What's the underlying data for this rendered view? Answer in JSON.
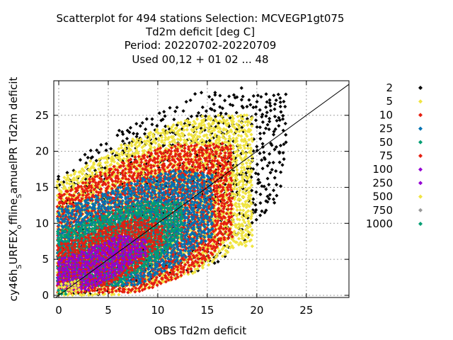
{
  "chart_data": {
    "type": "scatter",
    "title_lines": [
      "Scatterplot for  494 stations Selection: MCVEGP1gt075",
      "Td2m deficit [deg C]",
      "Period: 20220702-20220709",
      "Used  00,12  + 01 02 ... 48"
    ],
    "xlabel": "OBS Td2m deficit",
    "ylabel_parts": [
      "cy46h",
      "S",
      "URFEX",
      "o",
      "ffline",
      "S",
      "amuelPR Td2m deficit"
    ],
    "xlim": [
      -0.5,
      29.3
    ],
    "ylim": [
      -0.3,
      29.8
    ],
    "x_ticks": [
      0,
      5,
      10,
      15,
      20,
      25
    ],
    "y_ticks": [
      0,
      5,
      10,
      15,
      20,
      25
    ],
    "grid": true,
    "diagonal_line": true,
    "legend_position": "right",
    "legend": [
      {
        "label": "2",
        "color": "#000000"
      },
      {
        "label": "5",
        "color": "#f0e442"
      },
      {
        "label": "10",
        "color": "#e51e10"
      },
      {
        "label": "25",
        "color": "#0072b2"
      },
      {
        "label": "50",
        "color": "#009e73"
      },
      {
        "label": "75",
        "color": "#e51e10"
      },
      {
        "label": "100",
        "color": "#9400d3"
      },
      {
        "label": "250",
        "color": "#9400d3"
      },
      {
        "label": "500",
        "color": "#f0e442"
      },
      {
        "label": "750",
        "color": "#999999"
      },
      {
        "label": "1000",
        "color": "#009e73"
      }
    ],
    "density_bands": [
      {
        "count_class": "2",
        "color": "#000000",
        "upper": [
          [
            0,
            17
          ],
          [
            2,
            19
          ],
          [
            4,
            21
          ],
          [
            6,
            23
          ],
          [
            8,
            24.5
          ],
          [
            10,
            25.5
          ],
          [
            12,
            26.5
          ],
          [
            14,
            28
          ],
          [
            16,
            28.5
          ]
        ],
        "lower_gap": [
          [
            4,
            0.2
          ],
          [
            8,
            1.5
          ],
          [
            12,
            3
          ],
          [
            16,
            4.5
          ],
          [
            18,
            7
          ],
          [
            20,
            10
          ],
          [
            22,
            13
          ],
          [
            23,
            19
          ]
        ],
        "x_max": 23,
        "spread": 1.0
      },
      {
        "count_class": "5",
        "color": "#f0e442",
        "upper": [
          [
            0,
            16
          ],
          [
            4,
            19
          ],
          [
            8,
            22
          ],
          [
            12,
            24
          ],
          [
            15,
            25
          ]
        ],
        "lower_gap": [
          [
            6,
            0.2
          ],
          [
            10,
            1.5
          ],
          [
            14,
            3.5
          ],
          [
            18,
            7
          ]
        ],
        "x_max": 19.5,
        "spread": 0.9
      },
      {
        "count_class": "10",
        "color": "#e51e10",
        "upper": [
          [
            0,
            14
          ],
          [
            4,
            17
          ],
          [
            8,
            19.5
          ],
          [
            12,
            21
          ],
          [
            14,
            21
          ]
        ],
        "lower_gap": [
          [
            8,
            0.5
          ],
          [
            12,
            2.5
          ],
          [
            15,
            5
          ],
          [
            17,
            8
          ]
        ],
        "x_max": 17.5,
        "spread": 0.8
      },
      {
        "count_class": "25",
        "color": "#0072b2",
        "upper": [
          [
            0,
            12
          ],
          [
            4,
            14
          ],
          [
            8,
            16
          ],
          [
            12,
            17.5
          ],
          [
            14,
            17
          ]
        ],
        "lower_gap": [
          [
            8,
            1.5
          ],
          [
            12,
            4.5
          ],
          [
            15,
            8
          ]
        ],
        "x_max": 15.5,
        "spread": 0.7
      },
      {
        "count_class": "50",
        "color": "#009e73",
        "upper": [
          [
            0,
            9
          ],
          [
            4,
            11
          ],
          [
            8,
            13
          ],
          [
            11,
            13
          ]
        ],
        "lower_gap": [
          [
            6,
            1.5
          ],
          [
            10,
            5
          ],
          [
            12,
            8
          ]
        ],
        "x_max": 12.5,
        "spread": 0.6
      },
      {
        "count_class": "75",
        "color": "#e51e10",
        "upper": [
          [
            0,
            7
          ],
          [
            4,
            9
          ],
          [
            8,
            11
          ],
          [
            10,
            10
          ]
        ],
        "lower_gap": [
          [
            5,
            1.5
          ],
          [
            8,
            4
          ],
          [
            10,
            7
          ]
        ],
        "x_max": 10.5,
        "spread": 0.55
      },
      {
        "count_class": "100",
        "color": "#9400d3",
        "upper": [
          [
            0,
            5
          ],
          [
            3,
            6.5
          ],
          [
            6,
            8.5
          ],
          [
            8,
            8
          ]
        ],
        "lower_gap": [
          [
            3,
            0.8
          ],
          [
            6,
            3
          ],
          [
            8,
            5.5
          ]
        ],
        "x_max": 9,
        "spread": 0.5
      },
      {
        "count_class": "500",
        "color": "#f0e442",
        "upper": [
          [
            0,
            1.5
          ],
          [
            1,
            2
          ],
          [
            2,
            2.5
          ]
        ],
        "lower_gap": [
          [
            1,
            0.3
          ],
          [
            2,
            0.8
          ]
        ],
        "x_max": 2.3,
        "spread": 0.4
      },
      {
        "count_class": "1000",
        "color": "#009e73",
        "upper": [
          [
            0,
            0.8
          ],
          [
            0.8,
            1
          ]
        ],
        "lower_gap": [
          [
            0.5,
            0.2
          ]
        ],
        "x_max": 1,
        "spread": 0.3
      }
    ]
  }
}
